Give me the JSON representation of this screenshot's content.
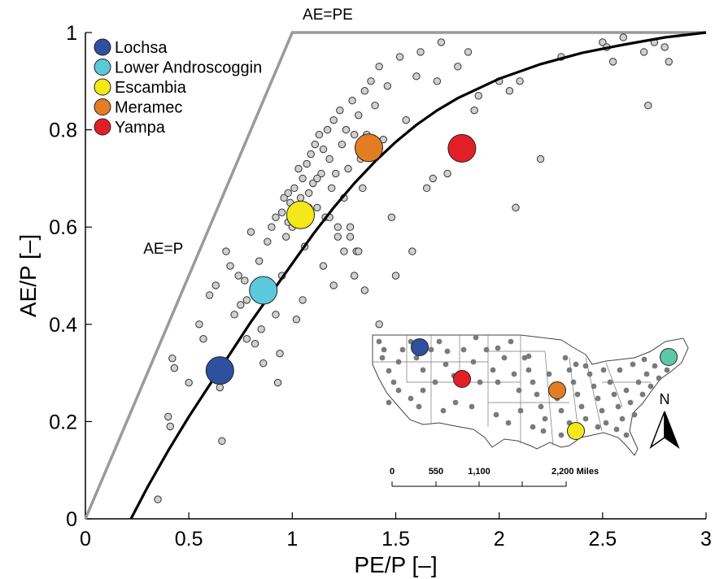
{
  "chart_data": {
    "type": "scatter",
    "xlabel": "PE/P [–]",
    "ylabel": "AE/P [–]",
    "xlim": [
      0,
      3
    ],
    "ylim": [
      0,
      1
    ],
    "xticks": [
      "0",
      "0.5",
      "1",
      "1.5",
      "2",
      "2.5",
      "3"
    ],
    "yticks": [
      "0",
      "0.2",
      "0.4",
      "0.6",
      "0.8",
      "1"
    ],
    "grid": false,
    "legend_position": "top-left",
    "limits": [
      {
        "label": "AE=P",
        "points": [
          [
            0,
            0
          ],
          [
            1,
            1
          ]
        ]
      },
      {
        "label": "AE=PE",
        "points": [
          [
            1,
            1
          ],
          [
            3,
            1
          ]
        ]
      }
    ],
    "fit_curve": {
      "x": [
        0.22,
        0.3,
        0.4,
        0.5,
        0.6,
        0.7,
        0.8,
        0.9,
        1.0,
        1.1,
        1.2,
        1.3,
        1.4,
        1.5,
        1.6,
        1.7,
        1.8,
        2.0,
        2.2,
        2.4,
        2.6,
        2.8,
        3.0
      ],
      "y": [
        0.0,
        0.065,
        0.14,
        0.21,
        0.275,
        0.34,
        0.405,
        0.465,
        0.525,
        0.585,
        0.64,
        0.69,
        0.735,
        0.775,
        0.81,
        0.84,
        0.865,
        0.905,
        0.935,
        0.958,
        0.975,
        0.99,
        1.0
      ]
    },
    "series": [
      {
        "type": "gray-points",
        "x": [
          0.35,
          0.4,
          0.41,
          0.42,
          0.43,
          0.5,
          0.55,
          0.57,
          0.6,
          0.63,
          0.65,
          0.66,
          0.68,
          0.7,
          0.72,
          0.74,
          0.75,
          0.77,
          0.78,
          0.8,
          0.82,
          0.84,
          0.86,
          0.88,
          0.9,
          0.92,
          0.93,
          0.94,
          0.95,
          0.96,
          0.97,
          0.98,
          0.99,
          1.0,
          1.01,
          1.02,
          1.03,
          1.04,
          1.05,
          1.06,
          1.07,
          1.08,
          1.09,
          1.1,
          1.11,
          1.12,
          1.13,
          1.14,
          1.15,
          1.16,
          1.17,
          1.18,
          1.19,
          1.2,
          1.21,
          1.22,
          1.23,
          1.24,
          1.25,
          1.26,
          1.27,
          1.28,
          1.29,
          1.3,
          1.31,
          1.32,
          1.33,
          1.34,
          1.35,
          1.36,
          1.38,
          1.4,
          1.42,
          1.44,
          1.46,
          1.48,
          1.5,
          1.52,
          1.55,
          1.58,
          1.6,
          1.62,
          1.65,
          1.68,
          1.7,
          1.72,
          1.75,
          1.8,
          1.85,
          1.88,
          1.9,
          2.0,
          2.05,
          2.08,
          2.1,
          2.2,
          2.3,
          2.5,
          2.52,
          2.55,
          2.6,
          2.7,
          2.72,
          2.75,
          2.8,
          2.82,
          0.88,
          0.95,
          1.05,
          1.15,
          1.2,
          1.25,
          1.3,
          1.35,
          1.28,
          1.18,
          1.08,
          0.98,
          0.85,
          0.78,
          1.12,
          1.22,
          1.32,
          1.42,
          1.02,
          0.92
        ],
        "y": [
          0.04,
          0.21,
          0.19,
          0.33,
          0.31,
          0.28,
          0.4,
          0.37,
          0.46,
          0.48,
          0.27,
          0.16,
          0.55,
          0.52,
          0.42,
          0.5,
          0.44,
          0.49,
          0.37,
          0.59,
          0.36,
          0.53,
          0.32,
          0.57,
          0.6,
          0.62,
          0.28,
          0.34,
          0.63,
          0.66,
          0.58,
          0.61,
          0.65,
          0.6,
          0.68,
          0.62,
          0.72,
          0.66,
          0.7,
          0.56,
          0.73,
          0.67,
          0.75,
          0.69,
          0.77,
          0.64,
          0.79,
          0.71,
          0.76,
          0.62,
          0.8,
          0.74,
          0.68,
          0.82,
          0.71,
          0.58,
          0.84,
          0.77,
          0.66,
          0.8,
          0.72,
          0.6,
          0.86,
          0.79,
          0.55,
          0.83,
          0.74,
          0.68,
          0.88,
          0.79,
          0.9,
          0.85,
          0.93,
          0.78,
          0.89,
          0.62,
          0.5,
          0.95,
          0.82,
          0.55,
          0.91,
          0.96,
          0.68,
          0.7,
          0.9,
          0.98,
          0.71,
          0.93,
          0.96,
          0.84,
          0.87,
          0.9,
          0.88,
          0.64,
          0.9,
          0.74,
          0.95,
          0.98,
          0.97,
          0.94,
          0.99,
          0.96,
          0.85,
          0.98,
          0.97,
          0.94,
          0.45,
          0.5,
          0.45,
          0.52,
          0.48,
          0.55,
          0.5,
          0.47,
          0.58,
          0.62,
          0.64,
          0.67,
          0.39,
          0.45,
          0.7,
          0.6,
          0.55,
          0.4,
          0.41,
          0.42
        ]
      },
      {
        "name": "Lochsa",
        "color": "#2f4f9f",
        "x": [
          0.65
        ],
        "y": [
          0.305
        ]
      },
      {
        "name": "Lower Androscoggin",
        "color": "#5cc8dc",
        "x": [
          0.86
        ],
        "y": [
          0.47
        ]
      },
      {
        "name": "Escambia",
        "color": "#f2e81a",
        "x": [
          1.04
        ],
        "y": [
          0.625
        ]
      },
      {
        "name": "Meramec",
        "color": "#e27d24",
        "x": [
          1.37
        ],
        "y": [
          0.763
        ]
      },
      {
        "name": "Yampa",
        "color": "#e21f26",
        "x": [
          1.82
        ],
        "y": [
          0.762
        ]
      }
    ],
    "inset_map": {
      "scale_labels": [
        "0",
        "550",
        "1,100",
        "2,200 Miles"
      ],
      "north_label": "N",
      "marker_colors": [
        "#2f4f9f",
        "#5cc8a8",
        "#f2e81a",
        "#e27d24",
        "#e21f26"
      ]
    }
  }
}
